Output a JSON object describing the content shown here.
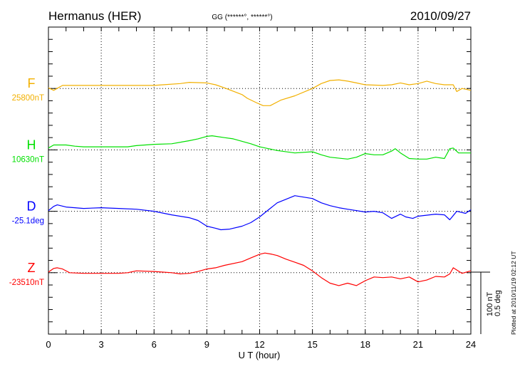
{
  "header": {
    "station": "Hermanus (HER)",
    "coords": "GG (******°, ******°)",
    "date": "2010/09/27"
  },
  "footer": {
    "plotted": "Plotted at 2010/11/19 02:12 UT"
  },
  "colors": {
    "F": "#f2b000",
    "H": "#00e000",
    "D": "#0000ff",
    "Z": "#ff0000",
    "axis": "#000000",
    "grid": "#000000"
  },
  "chart_data": {
    "type": "line",
    "title": "Hermanus (HER)",
    "xlabel": "U T (hour)",
    "xlim": [
      0,
      24
    ],
    "xticks": [
      "0",
      "3",
      "6",
      "9",
      "12",
      "15",
      "18",
      "21",
      "24"
    ],
    "scale": {
      "nT_label": "100 nT",
      "deg_label": "0.5 deg",
      "nT_full": 100,
      "deg_full": 0.5
    },
    "grid": "dotted vertical every 3 h, dotted baseline per channel",
    "series": [
      {
        "name": "F",
        "baseline_label": "25800nT",
        "unit": "nT",
        "points": [
          [
            0,
            1
          ],
          [
            0.3,
            -3
          ],
          [
            0.8,
            5
          ],
          [
            2,
            5
          ],
          [
            4,
            5
          ],
          [
            6,
            5
          ],
          [
            6.5,
            6
          ],
          [
            7.5,
            8
          ],
          [
            8,
            10
          ],
          [
            9,
            9
          ],
          [
            9.5,
            6
          ],
          [
            10,
            1
          ],
          [
            11,
            -10
          ],
          [
            11.3,
            -16
          ],
          [
            11.8,
            -23
          ],
          [
            12.2,
            -28
          ],
          [
            12.6,
            -28
          ],
          [
            13.2,
            -19
          ],
          [
            14,
            -12
          ],
          [
            15,
            0
          ],
          [
            15.5,
            8
          ],
          [
            16,
            13
          ],
          [
            16.5,
            14
          ],
          [
            17,
            12
          ],
          [
            17.5,
            9
          ],
          [
            18,
            6
          ],
          [
            19,
            5
          ],
          [
            19.5,
            6
          ],
          [
            20,
            9
          ],
          [
            20.5,
            6
          ],
          [
            21,
            8
          ],
          [
            21.5,
            12
          ],
          [
            22,
            8
          ],
          [
            22.5,
            6
          ],
          [
            23,
            6
          ],
          [
            23.2,
            -5
          ],
          [
            23.5,
            0
          ],
          [
            24,
            -3
          ]
        ]
      },
      {
        "name": "H",
        "baseline_label": "10630nT",
        "unit": "nT",
        "points": [
          [
            0,
            3
          ],
          [
            0.3,
            8
          ],
          [
            1,
            8
          ],
          [
            1.5,
            6
          ],
          [
            2,
            5
          ],
          [
            4.5,
            5
          ],
          [
            5,
            7
          ],
          [
            6,
            9
          ],
          [
            7,
            10
          ],
          [
            8,
            15
          ],
          [
            8.5,
            18
          ],
          [
            9,
            22
          ],
          [
            9.3,
            23
          ],
          [
            10,
            20
          ],
          [
            10.5,
            18
          ],
          [
            11.5,
            10
          ],
          [
            12,
            5
          ],
          [
            12.5,
            2
          ],
          [
            13,
            -1
          ],
          [
            14,
            -5
          ],
          [
            15,
            -3
          ],
          [
            15.5,
            -8
          ],
          [
            16,
            -12
          ],
          [
            17,
            -15
          ],
          [
            17.5,
            -12
          ],
          [
            18,
            -6
          ],
          [
            18.5,
            -8
          ],
          [
            19,
            -8
          ],
          [
            19.5,
            -2
          ],
          [
            19.7,
            2
          ],
          [
            20,
            -5
          ],
          [
            20.5,
            -14
          ],
          [
            21,
            -15
          ],
          [
            21.5,
            -15
          ],
          [
            22,
            -12
          ],
          [
            22.5,
            -14
          ],
          [
            22.8,
            2
          ],
          [
            23,
            3
          ],
          [
            23.3,
            -5
          ],
          [
            24,
            -5
          ]
        ]
      },
      {
        "name": "D",
        "baseline_label": "-25.1deg",
        "unit": "deg",
        "points": [
          [
            0,
            0.006
          ],
          [
            0.3,
            0.04
          ],
          [
            0.5,
            0.052
          ],
          [
            1,
            0.035
          ],
          [
            2,
            0.023
          ],
          [
            3,
            0.029
          ],
          [
            4,
            0.023
          ],
          [
            5,
            0.017
          ],
          [
            6,
            0
          ],
          [
            7,
            -0.029
          ],
          [
            8,
            -0.052
          ],
          [
            8.5,
            -0.075
          ],
          [
            9,
            -0.121
          ],
          [
            9.5,
            -0.138
          ],
          [
            9.8,
            -0.15
          ],
          [
            10.3,
            -0.145
          ],
          [
            11,
            -0.121
          ],
          [
            11.5,
            -0.092
          ],
          [
            12,
            -0.046
          ],
          [
            12.5,
            0.012
          ],
          [
            13,
            0.069
          ],
          [
            13.5,
            0.098
          ],
          [
            14,
            0.127
          ],
          [
            15,
            0.104
          ],
          [
            15.5,
            0.069
          ],
          [
            16,
            0.046
          ],
          [
            16.5,
            0.029
          ],
          [
            17,
            0.017
          ],
          [
            18,
            -0.006
          ],
          [
            18.5,
            0
          ],
          [
            19,
            -0.012
          ],
          [
            19.5,
            -0.058
          ],
          [
            20,
            -0.023
          ],
          [
            20.3,
            -0.046
          ],
          [
            20.7,
            -0.058
          ],
          [
            21,
            -0.04
          ],
          [
            22,
            -0.023
          ],
          [
            22.5,
            -0.029
          ],
          [
            22.8,
            -0.069
          ],
          [
            23.2,
            0
          ],
          [
            23.7,
            -0.017
          ],
          [
            24,
            0.012
          ]
        ]
      },
      {
        "name": "Z",
        "baseline_label": "-23510nT",
        "unit": "nT",
        "points": [
          [
            0,
            1
          ],
          [
            0.3,
            7
          ],
          [
            0.5,
            8
          ],
          [
            0.8,
            6
          ],
          [
            1.2,
            0
          ],
          [
            2,
            -1
          ],
          [
            4,
            -1
          ],
          [
            4.5,
            0
          ],
          [
            5,
            3
          ],
          [
            6,
            2
          ],
          [
            7,
            0
          ],
          [
            7.5,
            -2
          ],
          [
            8,
            -1
          ],
          [
            8.5,
            2
          ],
          [
            9,
            6
          ],
          [
            9.5,
            8
          ],
          [
            10,
            12
          ],
          [
            11,
            18
          ],
          [
            11.5,
            24
          ],
          [
            12,
            30
          ],
          [
            12.3,
            32
          ],
          [
            12.7,
            30
          ],
          [
            13,
            28
          ],
          [
            13.5,
            22
          ],
          [
            14,
            17
          ],
          [
            14.5,
            12
          ],
          [
            15,
            3
          ],
          [
            15.5,
            -8
          ],
          [
            16,
            -17
          ],
          [
            16.5,
            -21
          ],
          [
            17,
            -17
          ],
          [
            17.5,
            -21
          ],
          [
            18,
            -13
          ],
          [
            18.5,
            -7
          ],
          [
            19,
            -8
          ],
          [
            19.5,
            -7
          ],
          [
            20,
            -10
          ],
          [
            20.5,
            -7
          ],
          [
            21,
            -15
          ],
          [
            21.5,
            -12
          ],
          [
            22,
            -6
          ],
          [
            22.5,
            -7
          ],
          [
            22.8,
            -2
          ],
          [
            23,
            8
          ],
          [
            23.5,
            -1
          ],
          [
            24,
            3
          ]
        ]
      }
    ]
  }
}
